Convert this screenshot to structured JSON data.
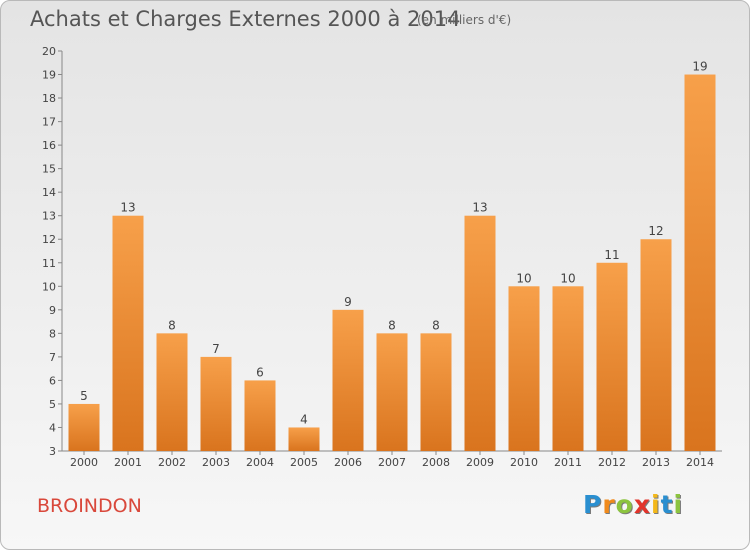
{
  "header": {
    "title": "Achats et Charges Externes 2000 à 2014",
    "subtitle": "(en milliers d'€)"
  },
  "footer": {
    "commune": "BROINDON",
    "logo_letters": [
      "P",
      "r",
      "o",
      "x",
      "i",
      "t",
      "i"
    ],
    "logo_colors": [
      "#2a8fd0",
      "#f08a1c",
      "#8cc43f",
      "#e2342b",
      "#f3b81a",
      "#2a8fd0",
      "#8cc43f"
    ]
  },
  "colors": {
    "bar_light": "#f7a04a",
    "bar_dark": "#d9741e",
    "axis": "#888888",
    "text": "#444444"
  },
  "chart_data": {
    "type": "bar",
    "title": "Achats et Charges Externes 2000 à 2014",
    "subtitle": "(en milliers d'€)",
    "categories": [
      "2000",
      "2001",
      "2002",
      "2003",
      "2004",
      "2005",
      "2006",
      "2007",
      "2008",
      "2009",
      "2010",
      "2011",
      "2012",
      "2013",
      "2014"
    ],
    "values": [
      5,
      13,
      8,
      7,
      6,
      4,
      9,
      8,
      8,
      13,
      10,
      10,
      11,
      12,
      19
    ],
    "ylim": [
      3,
      20
    ],
    "yticks": [
      3,
      4,
      5,
      6,
      7,
      8,
      9,
      10,
      11,
      12,
      13,
      14,
      15,
      16,
      17,
      18,
      19,
      20
    ],
    "grid": false,
    "legend": "none"
  }
}
